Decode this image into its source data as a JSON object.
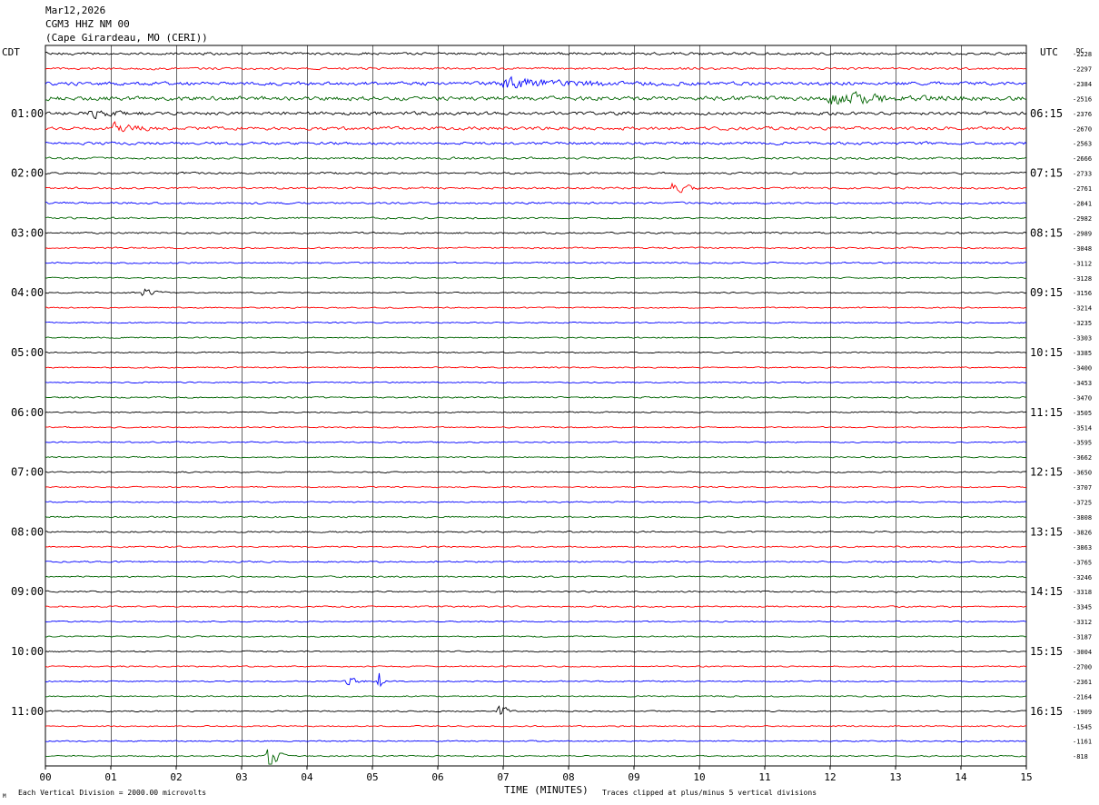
{
  "header": {
    "date": "Mar12,2026",
    "station": "CGM3 HHZ NM 00",
    "location": "(Cape Girardeau, MO (CERI))"
  },
  "left_tz": "CDT",
  "right_tz": "UTC",
  "dc_label": "DC",
  "footer": {
    "scale_note": "Each Vertical Division = 2000.00 microvolts",
    "xlabel": "TIME (MINUTES)",
    "clip_note": "Traces clipped at plus/minus 5 vertical divisions",
    "corner_mark": "M"
  },
  "colors": {
    "black": "#000000",
    "red": "#ff0000",
    "blue": "#0000ff",
    "green": "#006400",
    "grid": "#000000"
  },
  "chart_data": {
    "type": "line",
    "title": "CGM3 HHZ NM 00",
    "xlabel": "TIME (MINUTES)",
    "x_ticks": [
      "00",
      "01",
      "02",
      "03",
      "04",
      "05",
      "06",
      "07",
      "08",
      "09",
      "10",
      "11",
      "12",
      "13",
      "14",
      "15"
    ],
    "xlim": [
      0,
      15
    ],
    "minutes_per_trace": 15,
    "color_cycle": [
      "black",
      "red",
      "blue",
      "green"
    ],
    "left_time_labels": [
      "01:00",
      "02:00",
      "03:00",
      "04:00",
      "05:00",
      "06:00",
      "07:00",
      "08:00",
      "09:00",
      "10:00",
      "11:00"
    ],
    "right_time_labels": [
      "06:15",
      "07:15",
      "08:15",
      "09:15",
      "10:15",
      "11:15",
      "12:15",
      "13:15",
      "14:15",
      "15:15",
      "16:15"
    ],
    "dc_offsets": [
      -2228,
      -2297,
      -2384,
      -2516,
      -2376,
      -2670,
      -2563,
      -2666,
      -2733,
      -2761,
      -2841,
      -2982,
      -2989,
      -3048,
      -3112,
      -3128,
      -3156,
      -3214,
      -3235,
      -3303,
      -3385,
      -3400,
      -3453,
      -3470,
      -3505,
      -3514,
      -3595,
      -3662,
      -3650,
      -3707,
      -3725,
      -3808,
      -3826,
      -3863,
      -3765,
      -3246,
      -3318,
      -3345,
      -3312,
      -3187,
      -3004,
      -2700,
      -2361,
      -2164,
      -1909,
      -1545,
      -1161,
      -818
    ],
    "trace_noise": [
      1.2,
      1.0,
      1.6,
      1.9,
      1.5,
      1.5,
      1.3,
      1.0,
      0.9,
      0.9,
      0.9,
      0.8,
      0.8,
      0.7,
      0.7,
      0.6,
      0.6,
      0.6,
      0.6,
      0.6,
      0.6,
      0.6,
      0.6,
      0.7,
      0.6,
      0.6,
      0.6,
      0.6,
      0.6,
      0.6,
      0.6,
      0.7,
      0.7,
      0.7,
      0.7,
      0.7,
      0.7,
      0.7,
      0.6,
      0.6,
      0.6,
      0.6,
      0.6,
      0.6,
      0.6,
      0.6,
      0.6,
      0.6
    ],
    "events": [
      {
        "trace": 2,
        "minute": 7.0,
        "duration": 3.2,
        "amp": 2.2
      },
      {
        "trace": 3,
        "minute": 12.0,
        "duration": 2.5,
        "amp": 2.5
      },
      {
        "trace": 4,
        "minute": 0.7,
        "duration": 0.8,
        "amp": 2.0
      },
      {
        "trace": 5,
        "minute": 1.0,
        "duration": 0.8,
        "amp": 3.0
      },
      {
        "trace": 9,
        "minute": 9.6,
        "duration": 0.5,
        "amp": 3.5
      },
      {
        "trace": 16,
        "minute": 1.5,
        "duration": 0.4,
        "amp": 2.5
      },
      {
        "trace": 42,
        "minute": 4.6,
        "duration": 0.3,
        "amp": 3.5
      },
      {
        "trace": 42,
        "minute": 5.1,
        "duration": 0.15,
        "amp": 6.0
      },
      {
        "trace": 44,
        "minute": 6.95,
        "duration": 0.25,
        "amp": 4.0
      },
      {
        "trace": 47,
        "minute": 3.4,
        "duration": 0.3,
        "amp": 8.0
      }
    ]
  }
}
